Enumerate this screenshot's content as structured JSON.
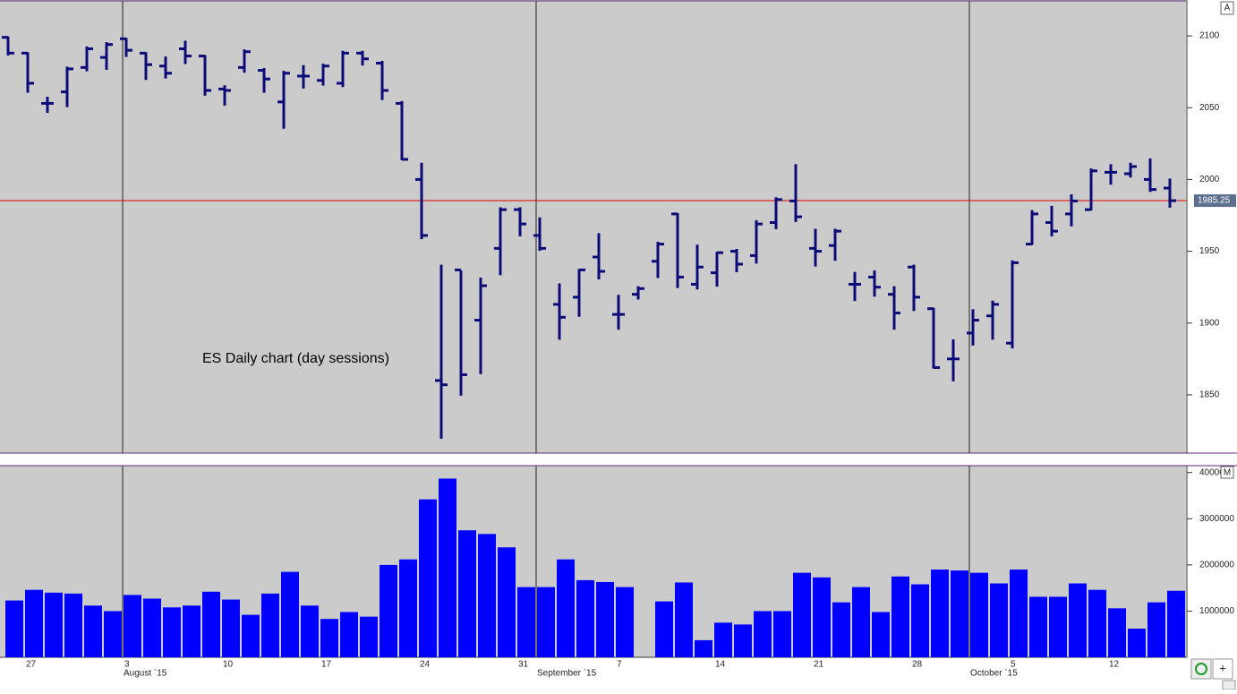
{
  "chart_data": [
    {
      "type": "ohlc",
      "annotation": "ES Daily chart (day sessions)",
      "categories": [
        null,
        "27",
        null,
        null,
        null,
        null,
        "3",
        null,
        null,
        null,
        null,
        "10",
        null,
        null,
        null,
        null,
        "17",
        null,
        null,
        null,
        null,
        "24",
        null,
        null,
        null,
        null,
        "31",
        null,
        null,
        null,
        null,
        "7",
        null,
        null,
        null,
        null,
        "14",
        null,
        null,
        null,
        null,
        "21",
        null,
        null,
        null,
        null,
        "28",
        null,
        null,
        null,
        null,
        "5",
        null,
        null,
        null,
        null,
        "12",
        null,
        null,
        null
      ],
      "month_labels": [
        null,
        null,
        null,
        null,
        null,
        null,
        "August `15",
        null,
        null,
        null,
        null,
        null,
        null,
        null,
        null,
        null,
        null,
        null,
        null,
        null,
        null,
        null,
        null,
        null,
        null,
        null,
        null,
        "September `15",
        null,
        null,
        null,
        null,
        null,
        null,
        null,
        null,
        null,
        null,
        null,
        null,
        null,
        null,
        null,
        null,
        null,
        null,
        null,
        null,
        null,
        "October `15",
        null,
        null,
        null,
        null,
        null,
        null,
        null,
        null,
        null,
        null
      ],
      "open": [
        2099,
        2088,
        2053,
        2061,
        2078,
        2085,
        2098,
        2088,
        2079,
        2091,
        2086,
        2063,
        2078,
        2076,
        2054,
        2072,
        2069,
        2067,
        2088,
        2081,
        2053,
        2000,
        1860,
        1937,
        1902,
        1952,
        1979,
        1961,
        1913,
        1918,
        1946,
        1906,
        1920,
        1943,
        1976,
        1927,
        1935,
        1950,
        1947,
        1970,
        1985,
        1952,
        1954,
        1927,
        1932,
        1920,
        1939,
        1910,
        1875,
        1893,
        1905,
        1886,
        1955,
        1970,
        1976,
        1979,
        2005,
        2004,
        2000,
        1994
      ],
      "high": [
        2099,
        2088,
        2057,
        2078,
        2092,
        2095,
        2098,
        2088,
        2085,
        2096,
        2086,
        2065,
        2090,
        2077,
        2075,
        2079,
        2080,
        2089,
        2089,
        2082,
        2054,
        2011,
        1940,
        1936,
        1931,
        1980,
        1980,
        1973,
        1927,
        1937,
        1962,
        1919,
        1925,
        1956,
        1976,
        1954,
        1949,
        1951,
        1971,
        1987,
        2010,
        1965,
        1965,
        1935,
        1936,
        1925,
        1940,
        1910,
        1888,
        1909,
        1915,
        1943,
        1978,
        1981,
        1989,
        2007,
        2010,
        2011,
        2014,
        2000
      ],
      "low": [
        2087,
        2061,
        2047,
        2051,
        2076,
        2077,
        2086,
        2070,
        2071,
        2081,
        2059,
        2052,
        2075,
        2061,
        2036,
        2064,
        2066,
        2065,
        2080,
        2056,
        2014,
        1959,
        1820,
        1850,
        1865,
        1934,
        1961,
        1951,
        1889,
        1905,
        1931,
        1896,
        1917,
        1932,
        1925,
        1924,
        1926,
        1936,
        1942,
        1966,
        1971,
        1940,
        1944,
        1916,
        1919,
        1896,
        1909,
        1869,
        1860,
        1885,
        1889,
        1883,
        1955,
        1961,
        1968,
        1979,
        1997,
        2002,
        1992,
        1981
      ],
      "close": [
        2088,
        2067,
        2053,
        2077,
        2091,
        2094,
        2090,
        2080,
        2074,
        2086,
        2062,
        2062,
        2089,
        2070,
        2074,
        2072,
        2079,
        2088,
        2084,
        2062,
        2014,
        1961,
        1857,
        1864,
        1926,
        1979,
        1969,
        1952,
        1904,
        1937,
        1936,
        1906,
        1924,
        1955,
        1932,
        1939,
        1949,
        1941,
        1969,
        1986,
        1974,
        1950,
        1964,
        1927,
        1925,
        1907,
        1918,
        1869,
        1875,
        1902,
        1913,
        1942,
        1976,
        1964,
        1985,
        2006,
        2005,
        2009,
        1993,
        1985.25
      ],
      "color": "#0c0c78",
      "last_line_color": "#e00000",
      "ylim": [
        1809.4,
        2125
      ],
      "yticks": [
        1850,
        1900,
        1950,
        2000,
        2050,
        2100
      ]
    },
    {
      "type": "bar",
      "values": [
        1230000,
        1460000,
        1400000,
        1380000,
        1120000,
        1000000,
        1350000,
        1270000,
        1080000,
        1120000,
        1420000,
        1250000,
        920000,
        1380000,
        1850000,
        1120000,
        830000,
        980000,
        880000,
        2000000,
        2120000,
        3420000,
        3870000,
        2750000,
        2670000,
        2380000,
        1520000,
        1520000,
        2120000,
        1670000,
        1630000,
        1520000,
        null,
        1210000,
        1620000,
        370000,
        750000,
        710000,
        1000000,
        1000000,
        1830000,
        1730000,
        1190000,
        1520000,
        980000,
        1750000,
        1580000,
        1900000,
        1880000,
        1830000,
        1600000,
        1900000,
        1310000,
        1310000,
        1600000,
        1460000,
        1060000,
        620000,
        1190000,
        1440000
      ],
      "color": "#0000ff",
      "ylim": [
        0,
        4150000
      ],
      "yticks": [
        1000000,
        2000000,
        3000000,
        4000000
      ]
    }
  ]
}
